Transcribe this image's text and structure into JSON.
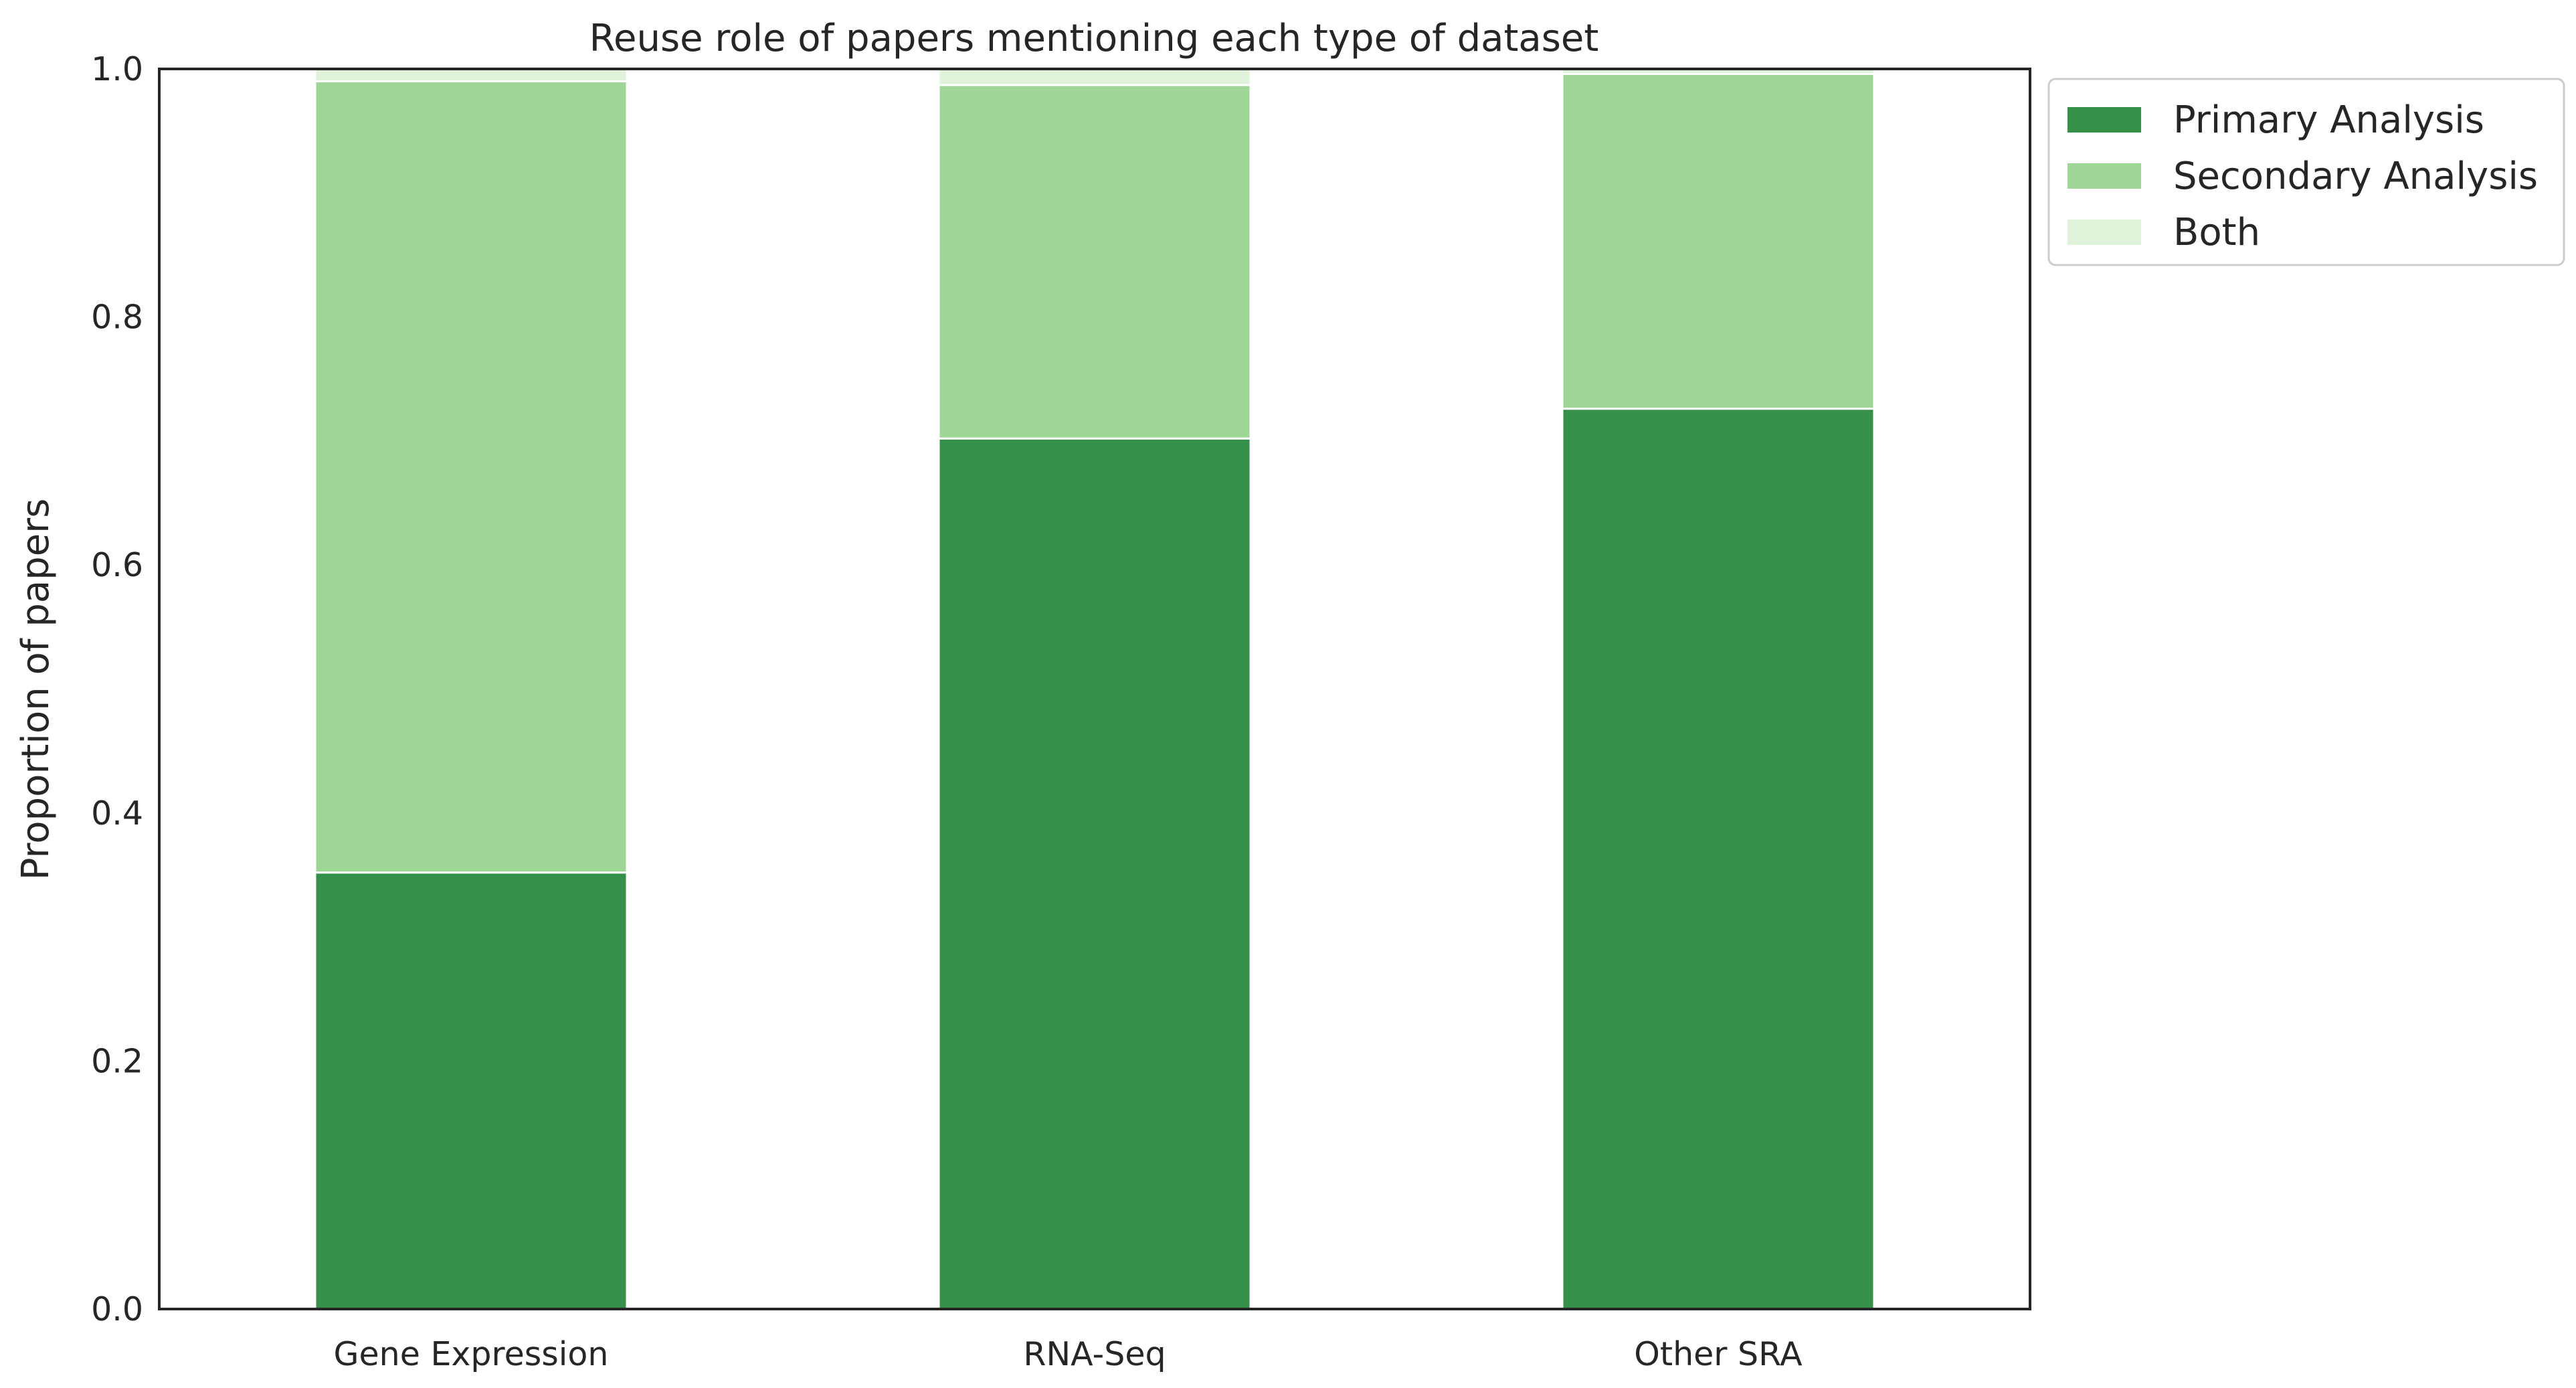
{
  "chart_data": {
    "type": "bar",
    "stacked": true,
    "title": "Reuse role of papers mentioning each type of dataset",
    "xlabel": "",
    "ylabel": "Proportion of papers",
    "ylim": [
      0,
      1.0
    ],
    "yticks": [
      "0.0",
      "0.2",
      "0.4",
      "0.6",
      "0.8",
      "1.0"
    ],
    "categories": [
      "Gene Expression",
      "RNA-Seq",
      "Other SRA"
    ],
    "series": [
      {
        "name": "Primary Analysis",
        "color": "#35904a",
        "values": [
          0.352,
          0.702,
          0.726
        ]
      },
      {
        "name": "Secondary Analysis",
        "color": "#a0d598",
        "values": [
          0.638,
          0.285,
          0.27
        ]
      },
      {
        "name": "Both",
        "color": "#e0f2da",
        "values": [
          0.01,
          0.013,
          0.004
        ]
      }
    ],
    "grid": false,
    "legend_position": "outside-top-right"
  }
}
